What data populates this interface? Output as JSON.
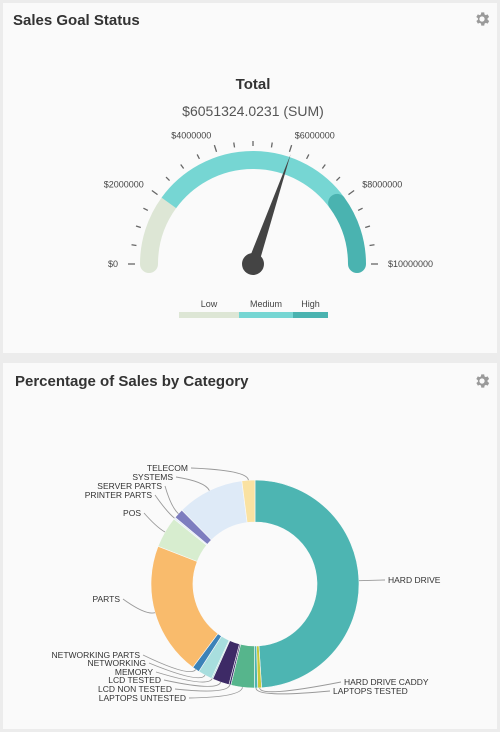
{
  "gauge_panel": {
    "title": "Sales Goal Status",
    "settings_icon": "gear-icon",
    "heading": "Total",
    "value_text": "$6051324.0231 (SUM)",
    "scale_labels": [
      "$0",
      "$2000000",
      "$4000000",
      "$6000000",
      "$8000000",
      "$10000000"
    ],
    "legend": [
      "Low",
      "Medium",
      "High"
    ]
  },
  "donut_panel": {
    "title": "Percentage of Sales by Category",
    "settings_icon": "gear-icon"
  },
  "chart_data": [
    {
      "type": "gauge",
      "title": "Total",
      "subtitle": "$6051324.0231 (SUM)",
      "min": 0,
      "max": 10000000,
      "value": 6051324.0231,
      "tick_labels": [
        "$0",
        "$2000000",
        "$4000000",
        "$6000000",
        "$8000000",
        "$10000000"
      ],
      "bands": [
        {
          "name": "Low",
          "from": 0,
          "to": 2000000,
          "color": "#dde6d5"
        },
        {
          "name": "Medium",
          "from": 2000000,
          "to": 8000000,
          "color": "#76d6d3"
        },
        {
          "name": "High",
          "from": 8000000,
          "to": 10000000,
          "color": "#4ab3b0"
        }
      ]
    },
    {
      "type": "pie",
      "donut": true,
      "slices": [
        {
          "label": "HARD DRIVE",
          "value": 48.5,
          "color": "#4db5b2"
        },
        {
          "label": "HARD DRIVE CADDY",
          "value": 0.6,
          "color": "#c8c83a"
        },
        {
          "label": "LAPTOPS TESTED",
          "value": 0.5,
          "color": "#4db5b2"
        },
        {
          "label": "LAPTOPS UNTESTED",
          "value": 3.6,
          "color": "#56b58c"
        },
        {
          "label": "LCD NON TESTED",
          "value": 0.3,
          "color": "#3d2f6e"
        },
        {
          "label": "LCD TESTED",
          "value": 2.6,
          "color": "#3d2a66"
        },
        {
          "label": "MEMORY",
          "value": 0.2,
          "color": "#9fd8d8"
        },
        {
          "label": "NETWORKING",
          "value": 2.2,
          "color": "#a8dede"
        },
        {
          "label": "NETWORKING PARTS",
          "value": 1.1,
          "color": "#3b82b8"
        },
        {
          "label": "PARTS",
          "value": 20.5,
          "color": "#f9bb6c"
        },
        {
          "label": "POS",
          "value": 4.8,
          "color": "#d7edcf"
        },
        {
          "label": "PRINTER PARTS",
          "value": 0.3,
          "color": "#e3eef8"
        },
        {
          "label": "SERVER PARTS",
          "value": 1.5,
          "color": "#7d7dbf"
        },
        {
          "label": "SYSTEMS",
          "value": 10.3,
          "color": "#deeaf7"
        },
        {
          "label": "TELECOM",
          "value": 2.0,
          "color": "#fae2a2"
        }
      ]
    }
  ]
}
